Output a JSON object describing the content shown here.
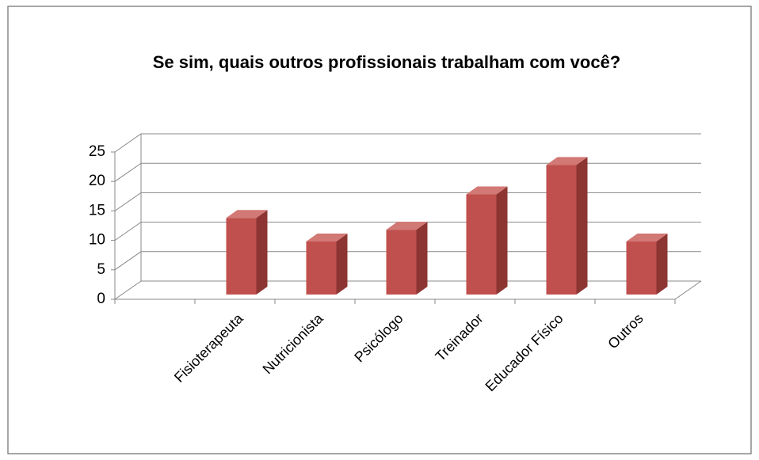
{
  "chart_data": {
    "type": "bar3d",
    "title": "Se sim, quais outros profissionais trabalham com você?",
    "categories": [
      null,
      "Fisioterapeuta",
      "Nutricionista",
      "Psicólogo",
      "Treinador",
      "Educador Físico",
      "Outros"
    ],
    "values": [
      null,
      13,
      9,
      11,
      17,
      22,
      9
    ],
    "color": "#c0504d",
    "ylim": [
      0,
      25
    ],
    "yticks": [
      0,
      5,
      10,
      15,
      20,
      25
    ],
    "grid": true
  }
}
